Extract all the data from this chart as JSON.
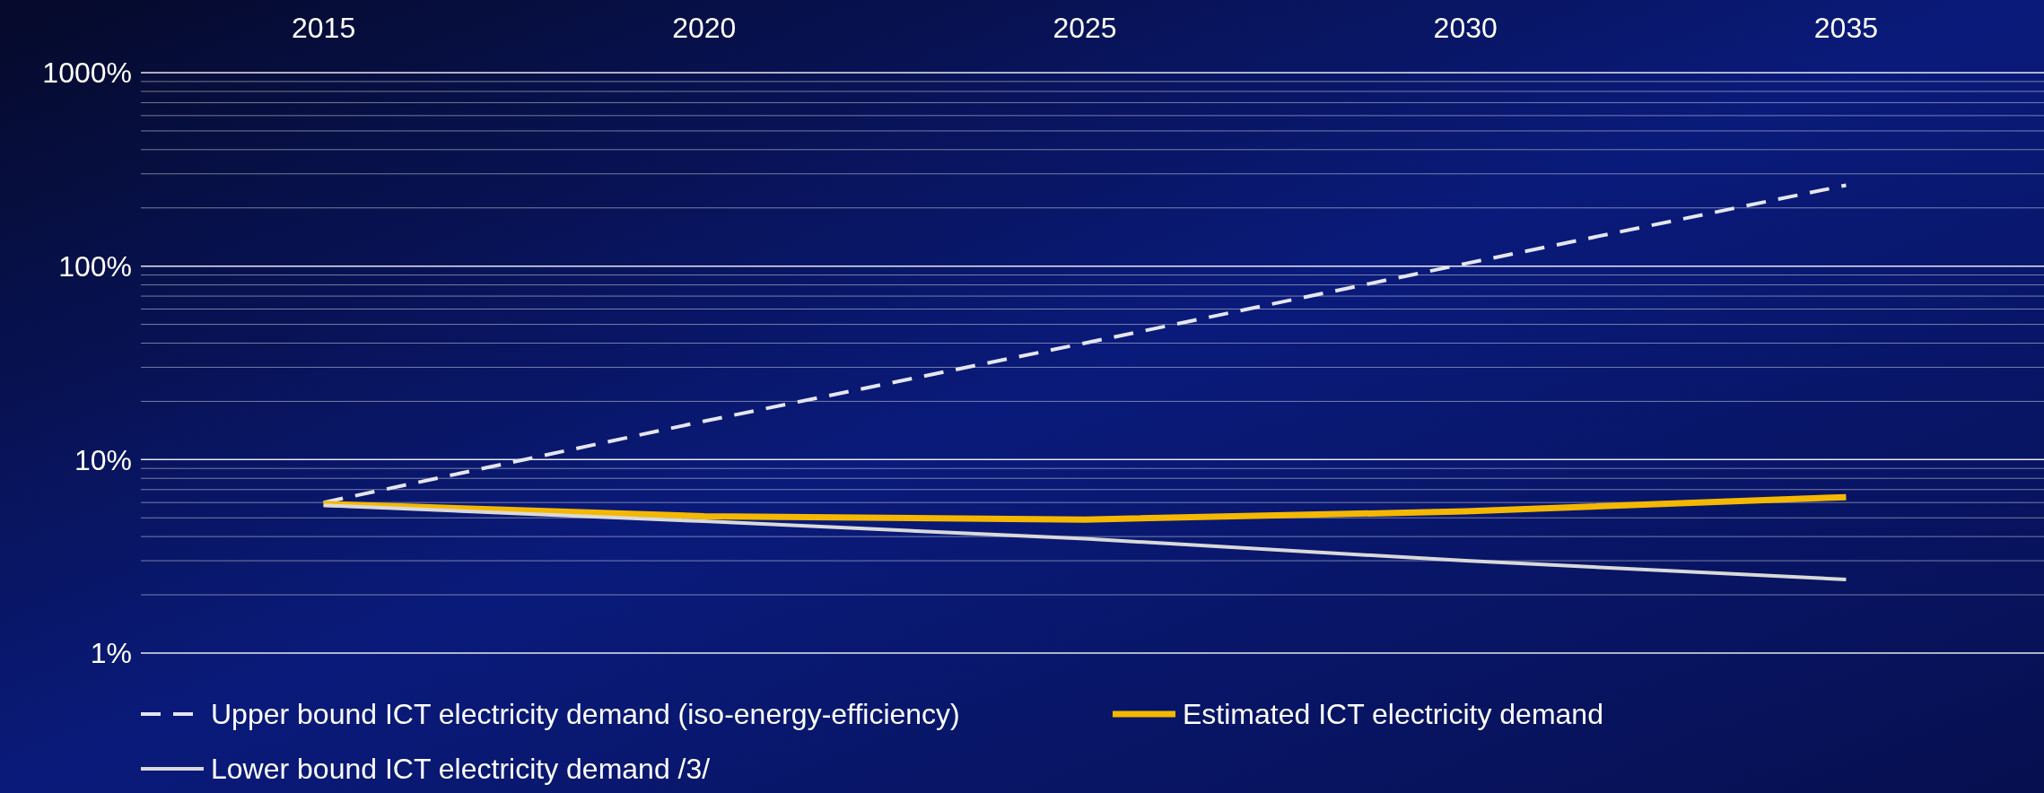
{
  "chart_data": {
    "type": "line",
    "x": [
      2015,
      2020,
      2025,
      2030,
      2035
    ],
    "xlim": [
      2012.6,
      2037.6
    ],
    "xticks": [
      2015,
      2020,
      2025,
      2030,
      2035
    ],
    "log": "y",
    "ylim": [
      1,
      1000
    ],
    "yticks": [
      {
        "value": 1,
        "label": "1%"
      },
      {
        "value": 2,
        "label": null
      },
      {
        "value": 3,
        "label": null
      },
      {
        "value": 4,
        "label": null
      },
      {
        "value": 5,
        "label": null
      },
      {
        "value": 6,
        "label": null
      },
      {
        "value": 7,
        "label": null
      },
      {
        "value": 8,
        "label": null
      },
      {
        "value": 9,
        "label": null
      },
      {
        "value": 10,
        "label": "10%"
      },
      {
        "value": 20,
        "label": null
      },
      {
        "value": 30,
        "label": null
      },
      {
        "value": 40,
        "label": null
      },
      {
        "value": 50,
        "label": null
      },
      {
        "value": 60,
        "label": null
      },
      {
        "value": 70,
        "label": null
      },
      {
        "value": 80,
        "label": null
      },
      {
        "value": 90,
        "label": null
      },
      {
        "value": 100,
        "label": "100%"
      },
      {
        "value": 200,
        "label": null
      },
      {
        "value": 300,
        "label": null
      },
      {
        "value": 400,
        "label": null
      },
      {
        "value": 500,
        "label": null
      },
      {
        "value": 600,
        "label": null
      },
      {
        "value": 700,
        "label": null
      },
      {
        "value": 800,
        "label": null
      },
      {
        "value": 900,
        "label": null
      },
      {
        "value": 1000,
        "label": "1000%"
      }
    ],
    "grid": "y",
    "legend": "bottom",
    "marker": "none",
    "series": [
      {
        "name": "Upper bound ICT electricity demand (iso-energy-efficiency)",
        "color": "#e4e6f0",
        "line_style": "dashed",
        "values": [
          6.0,
          15.8,
          40,
          103,
          262
        ]
      },
      {
        "name": "Estimated ICT electricity demand",
        "color": "#f5b800",
        "line_style": "solid",
        "values": [
          5.9,
          5.1,
          4.9,
          5.4,
          6.4
        ]
      },
      {
        "name": "Lower bound ICT electricity demand /3/",
        "color": "#d9d9d9",
        "line_style": "solid",
        "values": [
          5.8,
          4.8,
          3.9,
          3.0,
          2.4
        ]
      }
    ]
  }
}
